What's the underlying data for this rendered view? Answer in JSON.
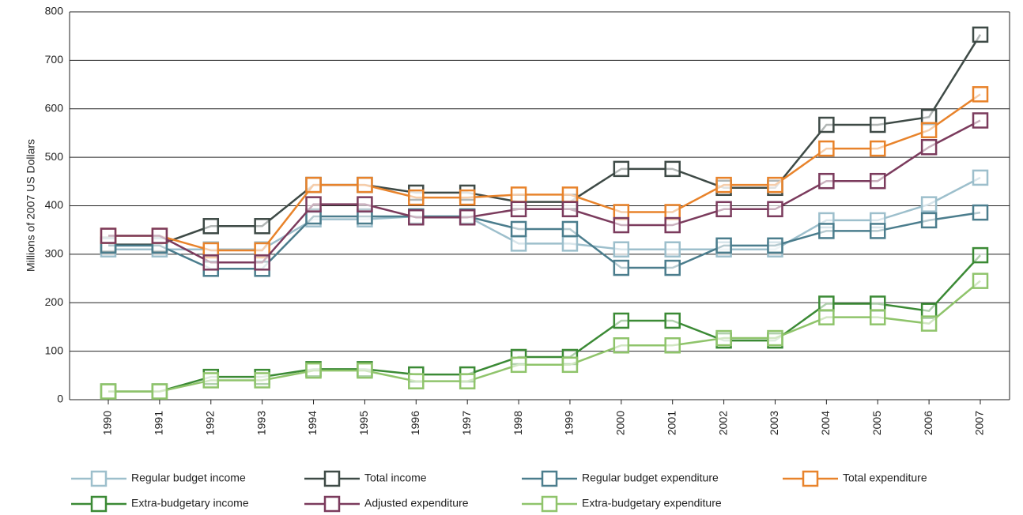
{
  "chart_data": {
    "type": "line",
    "ylabel": "Millions of 2007 US Dollars",
    "categories": [
      "1990",
      "1991",
      "1992",
      "1993",
      "1994",
      "1995",
      "1996",
      "1997",
      "1998",
      "1999",
      "2000",
      "2001",
      "2002",
      "2003",
      "2004",
      "2005",
      "2006",
      "2007"
    ],
    "series": [
      {
        "name": "Regular budget income",
        "color": "#9dbfcc",
        "values": [
          310,
          310,
          310,
          310,
          372,
          372,
          378,
          378,
          322,
          322,
          310,
          310,
          310,
          310,
          370,
          370,
          403,
          458
        ]
      },
      {
        "name": "Total income",
        "color": "#3e4a46",
        "values": [
          320,
          320,
          358,
          358,
          443,
          443,
          427,
          427,
          408,
          408,
          476,
          476,
          437,
          437,
          567,
          567,
          583,
          753
        ]
      },
      {
        "name": "Regular budget expenditure",
        "color": "#4b7d8d",
        "values": [
          318,
          318,
          270,
          270,
          378,
          378,
          378,
          378,
          352,
          352,
          272,
          272,
          318,
          318,
          348,
          348,
          370,
          386
        ]
      },
      {
        "name": "Total expenditure",
        "color": "#e8832b",
        "values": [
          338,
          338,
          308,
          308,
          443,
          443,
          417,
          417,
          423,
          423,
          387,
          387,
          443,
          443,
          518,
          518,
          556,
          630
        ]
      },
      {
        "name": "Extra-budgetary income",
        "color": "#3b8a35",
        "values": [
          17,
          17,
          47,
          47,
          63,
          63,
          52,
          52,
          88,
          88,
          163,
          163,
          122,
          122,
          198,
          198,
          183,
          298
        ]
      },
      {
        "name": "Adjusted expenditure",
        "color": "#7b3b5d",
        "values": [
          338,
          338,
          283,
          283,
          403,
          403,
          376,
          376,
          393,
          393,
          360,
          360,
          393,
          393,
          451,
          451,
          521,
          576
        ]
      },
      {
        "name": "Extra-budgetary expenditure",
        "color": "#8fc46b",
        "values": [
          17,
          17,
          40,
          40,
          60,
          60,
          38,
          38,
          72,
          72,
          112,
          112,
          127,
          127,
          170,
          170,
          157,
          245
        ]
      }
    ],
    "ylim": [
      0,
      800
    ],
    "yticks": [
      0,
      100,
      200,
      300,
      400,
      500,
      600,
      700,
      800
    ],
    "grid": true,
    "legend": "bottom"
  }
}
